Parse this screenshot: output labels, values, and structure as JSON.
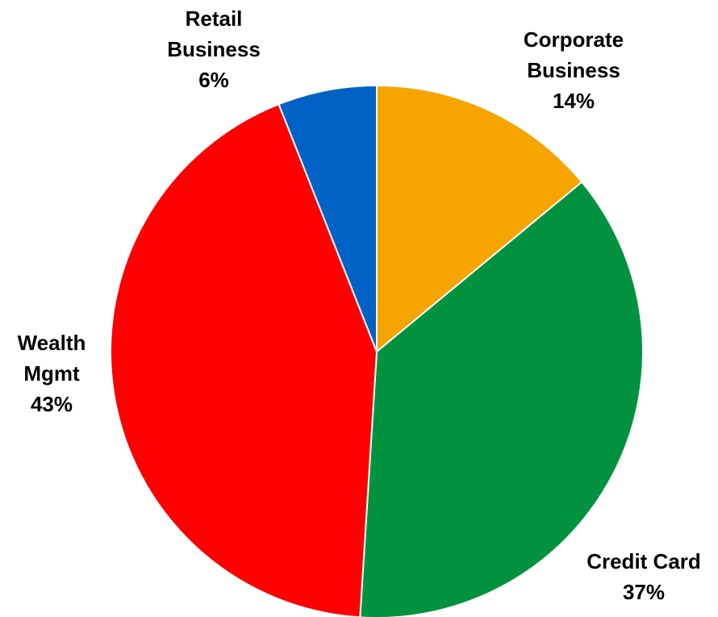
{
  "chart_data": {
    "type": "pie",
    "title": "",
    "categories": [
      "Corporate Business",
      "Credit Card",
      "Wealth Mgmt",
      "Retail Business"
    ],
    "values": [
      14,
      37,
      43,
      6
    ],
    "value_labels": [
      "14%",
      "37%",
      "43%",
      "6%"
    ],
    "label_lines": [
      [
        "Corporate",
        "Business",
        "14%"
      ],
      [
        "Credit Card",
        "37%"
      ],
      [
        "Wealth",
        "Mgmt",
        "43%"
      ],
      [
        "Retail",
        "Business",
        "6%"
      ]
    ],
    "colors": [
      "#F5A400",
      "#00923F",
      "#FF0000",
      "#0062C4"
    ],
    "start_angle_deg": 0,
    "direction": "clockwise",
    "legend": "none"
  }
}
